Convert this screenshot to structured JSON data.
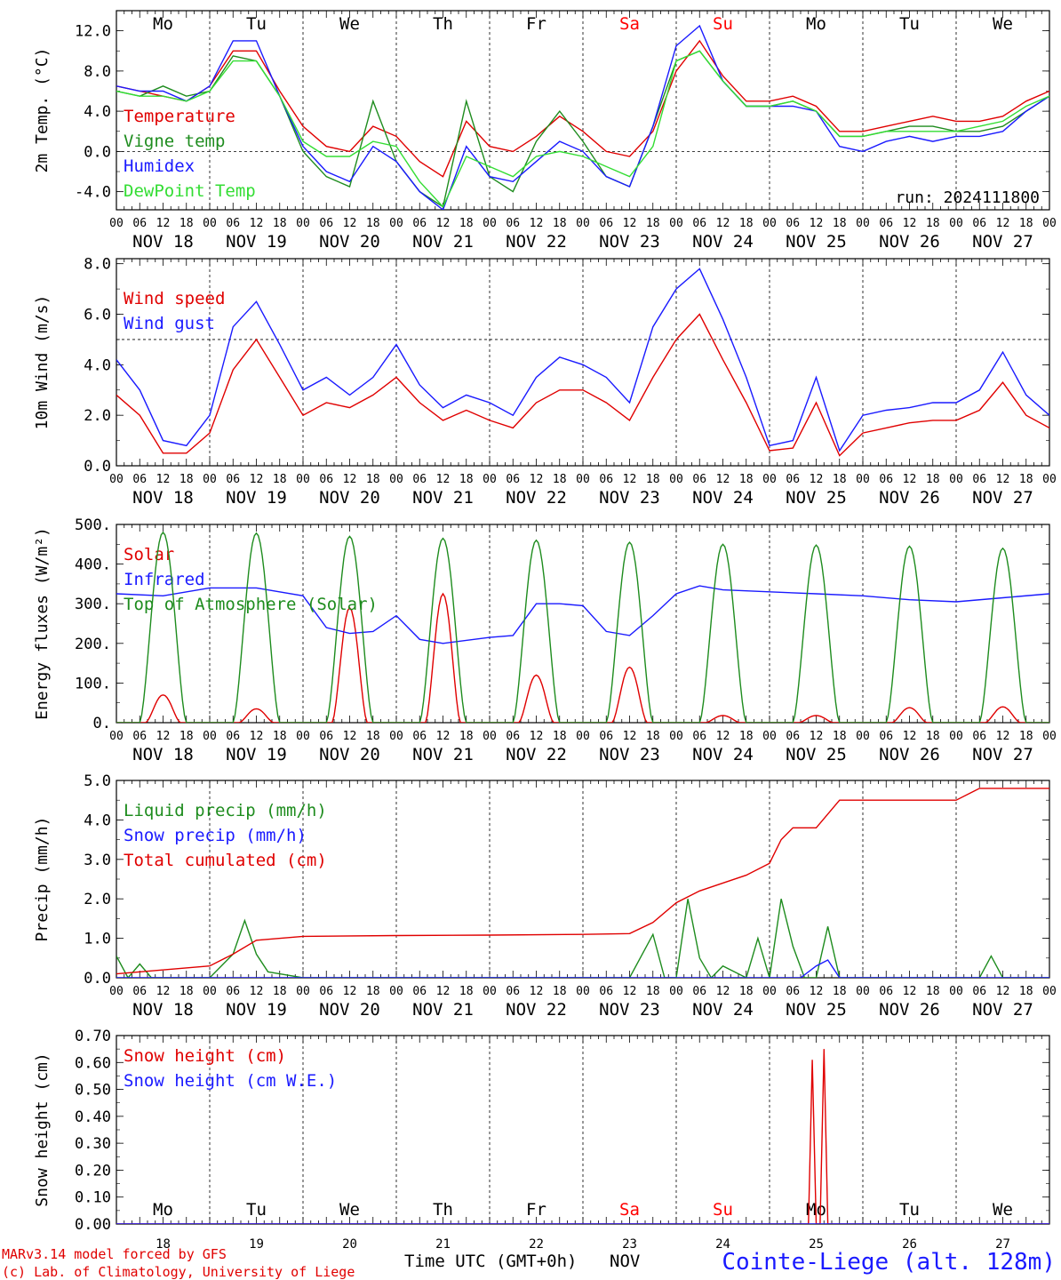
{
  "run_label": "run: 2024111800",
  "footer": {
    "model": "MARv3.14 model forced by GFS",
    "copyright": "(c) Lab. of Climatology, University of Liege",
    "time_axis": "Time UTC (GMT+0h)",
    "month": "NOV",
    "station": "Cointe-Liege (alt. 128m)"
  },
  "days": [
    {
      "name": "Mo",
      "date": "NOV 18",
      "num": "18",
      "weekend": false
    },
    {
      "name": "Tu",
      "date": "NOV 19",
      "num": "19",
      "weekend": false
    },
    {
      "name": "We",
      "date": "NOV 20",
      "num": "20",
      "weekend": false
    },
    {
      "name": "Th",
      "date": "NOV 21",
      "num": "21",
      "weekend": false
    },
    {
      "name": "Fr",
      "date": "NOV 22",
      "num": "22",
      "weekend": false
    },
    {
      "name": "Sa",
      "date": "NOV 23",
      "num": "23",
      "weekend": true
    },
    {
      "name": "Su",
      "date": "NOV 24",
      "num": "24",
      "weekend": true
    },
    {
      "name": "Mo",
      "date": "NOV 25",
      "num": "25",
      "weekend": false
    },
    {
      "name": "Tu",
      "date": "NOV 26",
      "num": "26",
      "weekend": false
    },
    {
      "name": "We",
      "date": "NOV 27",
      "num": "27",
      "weekend": false
    }
  ],
  "hour_labels": [
    "00",
    "06",
    "12",
    "18"
  ],
  "colors": {
    "red": "#ff0000",
    "darkred": "#d40000",
    "green": "#1e8c1e",
    "blue": "#1a1aff",
    "lightgreen": "#33dd33",
    "weekend": "#ff0000"
  },
  "chart_data": [
    {
      "type": "line",
      "ylabel": "2m Temp. (°C)",
      "ylim": [
        -5.8,
        14.0
      ],
      "yticks": [
        "12.0",
        "8.0",
        "4.0",
        "0.0",
        "-4.0"
      ],
      "ytick_values": [
        12,
        8,
        4,
        0,
        -4
      ],
      "reference_line": 0,
      "x_unit": "hours since NOV 18 00 UTC",
      "series": [
        {
          "name": "Temperature",
          "color": "#e00000",
          "x": [
            0,
            6,
            12,
            18,
            24,
            30,
            36,
            42,
            48,
            54,
            60,
            66,
            72,
            78,
            84,
            90,
            96,
            102,
            108,
            114,
            120,
            126,
            132,
            138,
            144,
            150,
            156,
            162,
            168,
            174,
            180,
            186,
            192,
            198,
            204,
            210,
            216,
            222,
            228,
            234,
            240
          ],
          "y": [
            6.5,
            6.0,
            5.5,
            5.0,
            6.5,
            10.0,
            10.0,
            6.0,
            2.5,
            0.5,
            0.0,
            2.5,
            1.5,
            -1.0,
            -2.5,
            3.0,
            0.5,
            0.0,
            1.5,
            3.5,
            2.0,
            0.0,
            -0.5,
            2.0,
            8.0,
            11.0,
            7.5,
            5.0,
            5.0,
            5.5,
            4.5,
            2.0,
            2.0,
            2.5,
            3.0,
            3.5,
            3.0,
            3.0,
            3.5,
            5.0,
            6.0
          ]
        },
        {
          "name": "Vigne temp",
          "color": "#1e8c1e",
          "x": [
            0,
            6,
            12,
            18,
            24,
            30,
            36,
            42,
            48,
            54,
            60,
            66,
            72,
            78,
            84,
            90,
            96,
            102,
            108,
            114,
            120,
            126,
            132,
            138,
            144,
            150,
            156,
            162,
            168,
            174,
            180,
            186,
            192,
            198,
            204,
            210,
            216,
            222,
            228,
            234,
            240
          ],
          "y": [
            6.0,
            5.5,
            6.5,
            5.5,
            6.0,
            9.5,
            9.0,
            5.5,
            0.0,
            -2.5,
            -3.5,
            5.0,
            -1.0,
            -4.0,
            -5.5,
            5.0,
            -2.5,
            -4.0,
            1.0,
            4.0,
            1.0,
            -2.5,
            -3.5,
            2.5,
            9.0,
            10.0,
            7.0,
            4.5,
            4.5,
            5.0,
            4.0,
            1.5,
            1.5,
            2.0,
            2.5,
            2.5,
            2.0,
            2.0,
            2.5,
            4.0,
            5.5
          ]
        },
        {
          "name": "Humidex",
          "color": "#1a1aff",
          "x": [
            0,
            6,
            12,
            18,
            24,
            30,
            36,
            42,
            48,
            54,
            60,
            66,
            72,
            78,
            84,
            90,
            96,
            102,
            108,
            114,
            120,
            126,
            132,
            138,
            144,
            150,
            156,
            162,
            168,
            174,
            180,
            186,
            192,
            198,
            204,
            210,
            216,
            222,
            228,
            234,
            240
          ],
          "y": [
            6.5,
            6.0,
            6.0,
            5.0,
            6.5,
            11.0,
            11.0,
            5.5,
            0.5,
            -2.0,
            -3.0,
            0.5,
            -1.0,
            -4.0,
            -5.8,
            0.5,
            -2.5,
            -3.0,
            -1.0,
            1.0,
            0.0,
            -2.5,
            -3.5,
            2.5,
            10.5,
            12.5,
            7.0,
            4.5,
            4.5,
            4.5,
            4.0,
            0.5,
            0.0,
            1.0,
            1.5,
            1.0,
            1.5,
            1.5,
            2.0,
            4.0,
            5.5
          ]
        },
        {
          "name": "DewPoint Temp",
          "color": "#33dd33",
          "x": [
            0,
            6,
            12,
            18,
            24,
            30,
            36,
            42,
            48,
            54,
            60,
            66,
            72,
            78,
            84,
            90,
            96,
            102,
            108,
            114,
            120,
            126,
            132,
            138,
            144,
            150,
            156,
            162,
            168,
            174,
            180,
            186,
            192,
            198,
            204,
            210,
            216,
            222,
            228,
            234,
            240
          ],
          "y": [
            6.0,
            5.5,
            5.5,
            5.0,
            6.0,
            9.0,
            9.0,
            5.5,
            1.0,
            -0.5,
            -0.5,
            1.0,
            0.5,
            -3.0,
            -5.5,
            -0.5,
            -1.5,
            -2.5,
            -0.5,
            0.0,
            -0.5,
            -1.5,
            -2.5,
            0.5,
            9.0,
            10.0,
            7.0,
            4.5,
            4.5,
            5.0,
            4.0,
            1.5,
            1.5,
            2.0,
            2.0,
            2.0,
            2.0,
            2.5,
            3.0,
            4.5,
            5.5
          ]
        }
      ]
    },
    {
      "type": "line",
      "ylabel": "10m Wind (m/s)",
      "ylim": [
        0.0,
        8.2
      ],
      "yticks": [
        "8.0",
        "6.0",
        "4.0",
        "2.0",
        "0.0"
      ],
      "ytick_values": [
        8,
        6,
        4,
        2,
        0
      ],
      "reference_line": 5,
      "x_unit": "hours since NOV 18 00 UTC",
      "series": [
        {
          "name": "Wind speed",
          "color": "#e00000",
          "x": [
            0,
            6,
            12,
            18,
            24,
            30,
            36,
            42,
            48,
            54,
            60,
            66,
            72,
            78,
            84,
            90,
            96,
            102,
            108,
            114,
            120,
            126,
            132,
            138,
            144,
            150,
            156,
            162,
            168,
            174,
            180,
            186,
            192,
            198,
            204,
            210,
            216,
            222,
            228,
            234,
            240
          ],
          "y": [
            2.8,
            2.0,
            0.5,
            0.5,
            1.3,
            3.8,
            5.0,
            3.5,
            2.0,
            2.5,
            2.3,
            2.8,
            3.5,
            2.5,
            1.8,
            2.2,
            1.8,
            1.5,
            2.5,
            3.0,
            3.0,
            2.5,
            1.8,
            3.5,
            5.0,
            6.0,
            4.2,
            2.5,
            0.6,
            0.7,
            2.5,
            0.4,
            1.3,
            1.5,
            1.7,
            1.8,
            1.8,
            2.2,
            3.3,
            2.0,
            1.5
          ]
        },
        {
          "name": "Wind gust",
          "color": "#1a1aff",
          "x": [
            0,
            6,
            12,
            18,
            24,
            30,
            36,
            42,
            48,
            54,
            60,
            66,
            72,
            78,
            84,
            90,
            96,
            102,
            108,
            114,
            120,
            126,
            132,
            138,
            144,
            150,
            156,
            162,
            168,
            174,
            180,
            186,
            192,
            198,
            204,
            210,
            216,
            222,
            228,
            234,
            240
          ],
          "y": [
            4.2,
            3.0,
            1.0,
            0.8,
            2.0,
            5.5,
            6.5,
            4.8,
            3.0,
            3.5,
            2.8,
            3.5,
            4.8,
            3.2,
            2.3,
            2.8,
            2.5,
            2.0,
            3.5,
            4.3,
            4.0,
            3.5,
            2.5,
            5.5,
            7.0,
            7.8,
            5.8,
            3.5,
            0.8,
            1.0,
            3.5,
            0.6,
            2.0,
            2.2,
            2.3,
            2.5,
            2.5,
            3.0,
            4.5,
            2.8,
            2.0
          ]
        }
      ]
    },
    {
      "type": "line",
      "ylabel": "Energy fluxes (W/m²)",
      "ylim": [
        0,
        500
      ],
      "yticks": [
        "500.",
        "400.",
        "300.",
        "200.",
        "100.",
        "0."
      ],
      "ytick_values": [
        500,
        400,
        300,
        200,
        100,
        0
      ],
      "x_unit": "hours since NOV 18 00 UTC",
      "series": [
        {
          "name": "Solar",
          "color": "#e00000",
          "peaks": [
            70,
            35,
            290,
            325,
            120,
            140,
            18,
            18,
            38,
            40
          ]
        },
        {
          "name": "Infrared",
          "color": "#1a1aff",
          "x": [
            0,
            12,
            24,
            36,
            48,
            54,
            60,
            66,
            72,
            78,
            84,
            96,
            102,
            108,
            114,
            120,
            126,
            132,
            138,
            144,
            150,
            156,
            168,
            180,
            192,
            204,
            216,
            228,
            240
          ],
          "y": [
            325,
            320,
            340,
            340,
            320,
            240,
            225,
            230,
            270,
            210,
            200,
            215,
            220,
            300,
            300,
            295,
            230,
            220,
            270,
            325,
            345,
            335,
            330,
            325,
            320,
            310,
            305,
            315,
            325
          ]
        },
        {
          "name": "Top of Atmosphere (Solar)",
          "color": "#1e8c1e",
          "peaks": [
            480,
            478,
            470,
            465,
            460,
            455,
            450,
            448,
            445,
            440
          ]
        }
      ]
    },
    {
      "type": "line",
      "ylabel": "Precip (mm/h)",
      "ylim": [
        0.0,
        5.0
      ],
      "yticks": [
        "5.0",
        "4.0",
        "3.0",
        "2.0",
        "1.0",
        "0.0"
      ],
      "ytick_values": [
        5,
        4,
        3,
        2,
        1,
        0
      ],
      "x_unit": "hours since NOV 18 00 UTC",
      "series": [
        {
          "name": "Liquid precip (mm/h)",
          "color": "#1e8c1e",
          "x": [
            0,
            3,
            6,
            9,
            12,
            18,
            24,
            30,
            33,
            36,
            39,
            42,
            48,
            120,
            132,
            138,
            141,
            144,
            147,
            150,
            153,
            156,
            162,
            165,
            168,
            171,
            174,
            177,
            180,
            183,
            186,
            192,
            216,
            222,
            225,
            228,
            240
          ],
          "y": [
            0.55,
            0.0,
            0.35,
            0.0,
            0.0,
            0.0,
            0.0,
            0.6,
            1.45,
            0.6,
            0.15,
            0.1,
            0.0,
            0.0,
            0.0,
            1.1,
            0.0,
            0.0,
            2.0,
            0.5,
            0.0,
            0.3,
            0.0,
            1.0,
            0.0,
            2.0,
            0.8,
            0.0,
            0.0,
            1.3,
            0.0,
            0.0,
            0.0,
            0.0,
            0.55,
            0.0,
            0.0
          ]
        },
        {
          "name": "Snow precip (mm/h)",
          "color": "#1a1aff",
          "x": [
            0,
            176,
            180,
            183,
            186,
            240
          ],
          "y": [
            0.0,
            0.0,
            0.3,
            0.45,
            0.0,
            0.0
          ]
        },
        {
          "name": "Total cumulated (cm)",
          "color": "#e00000",
          "x": [
            0,
            24,
            30,
            36,
            48,
            72,
            96,
            120,
            132,
            138,
            144,
            150,
            156,
            162,
            168,
            171,
            174,
            180,
            186,
            216,
            222,
            240
          ],
          "y": [
            0.1,
            0.3,
            0.6,
            0.95,
            1.05,
            1.07,
            1.08,
            1.1,
            1.12,
            1.4,
            1.9,
            2.2,
            2.4,
            2.6,
            2.9,
            3.5,
            3.8,
            3.8,
            4.5,
            4.5,
            4.8,
            4.8
          ]
        }
      ]
    },
    {
      "type": "line",
      "ylabel": "Snow height (cm)",
      "ylim": [
        0.0,
        0.7
      ],
      "yticks": [
        "0.70",
        "0.60",
        "0.50",
        "0.40",
        "0.30",
        "0.20",
        "0.10",
        "0.00"
      ],
      "ytick_values": [
        0.7,
        0.6,
        0.5,
        0.4,
        0.3,
        0.2,
        0.1,
        0.0
      ],
      "x_unit": "hours since NOV 18 00 UTC",
      "series": [
        {
          "name": "Snow height (cm)",
          "color": "#e00000",
          "x": [
            0,
            178,
            179,
            180,
            181,
            182,
            183,
            184,
            240
          ],
          "y": [
            0.0,
            0.0,
            0.61,
            0.0,
            0.0,
            0.65,
            0.0,
            0.0,
            0.0
          ]
        },
        {
          "name": "Snow height (cm W.E.)",
          "color": "#1a1aff",
          "x": [
            0,
            240
          ],
          "y": [
            0.0,
            0.0
          ]
        }
      ]
    }
  ]
}
